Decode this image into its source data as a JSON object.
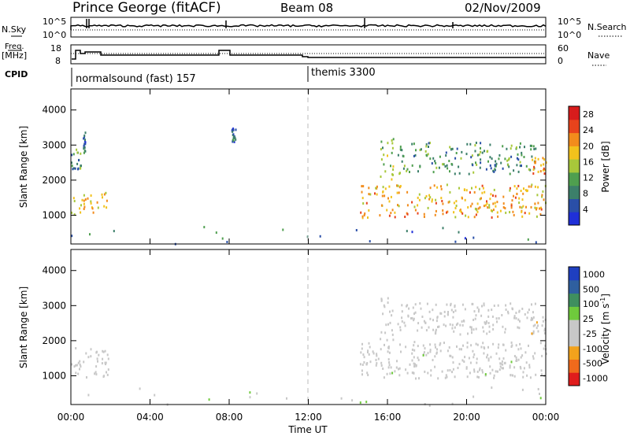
{
  "header": {
    "station": "Prince George (fitACF)",
    "beam": "Beam 08",
    "date": "02/Nov/2009"
  },
  "strips": {
    "nsky": {
      "label": "N.Sky",
      "ticks": [
        "10^5",
        "10^0"
      ]
    },
    "nsearch": {
      "label": "N.Search",
      "ticks": [
        "10^5",
        "10^0"
      ]
    },
    "freq": {
      "label_line1": "Freq.",
      "label_line2": "[MHz]",
      "ticks": [
        "18",
        "8"
      ]
    },
    "nave": {
      "label": "Nave",
      "ticks": [
        "60",
        "0"
      ]
    },
    "cpid": {
      "label": "CPID",
      "programs": [
        {
          "name": "normalsound (fast) 157",
          "start_hour": 0
        },
        {
          "name": "themis 3300",
          "start_hour": 12
        }
      ]
    }
  },
  "colors": {
    "power_scale": [
      "#1f2fd8",
      "#2a4fa8",
      "#3c7f6a",
      "#4f9f4f",
      "#a8c83a",
      "#f2c21c",
      "#f28c1c",
      "#e8431c",
      "#d81c1c"
    ],
    "velocity_scale": [
      "#e01c1c",
      "#f06a1c",
      "#f2a21c",
      "#c8c8c8",
      "#c8c8c8",
      "#6fca3c",
      "#3f8f5f",
      "#2f5f9f",
      "#1f3fc0"
    ]
  },
  "chart_data": [
    {
      "type": "heatmap",
      "title": "",
      "xlabel": "",
      "ylabel": "Slant Range [km]",
      "xlim": [
        0,
        24
      ],
      "ylim": [
        180,
        4600
      ],
      "x_tick_labels": [
        "00:00",
        "04:00",
        "08:00",
        "12:00",
        "16:00",
        "20:00",
        "00:00"
      ],
      "y_ticks": [
        1000,
        2000,
        3000,
        4000
      ],
      "colorbar": {
        "label": "Power [dB]",
        "ticks": [
          "4",
          "8",
          "12",
          "16",
          "20",
          "24",
          "28"
        ],
        "range": [
          0,
          30
        ]
      },
      "regions": [
        {
          "x": [
            0.0,
            1.9
          ],
          "y": [
            1050,
            1700
          ],
          "value": 18
        },
        {
          "x": [
            0.0,
            0.5
          ],
          "y": [
            2300,
            2900
          ],
          "value": 10
        },
        {
          "x": [
            0.6,
            0.7
          ],
          "y": [
            2800,
            3400
          ],
          "value": 6
        },
        {
          "x": [
            8.1,
            8.3
          ],
          "y": [
            3100,
            3500
          ],
          "value": 6
        },
        {
          "x": [
            14.6,
            24.0
          ],
          "y": [
            950,
            1900
          ],
          "value": 20
        },
        {
          "x": [
            15.6,
            16.3
          ],
          "y": [
            2000,
            3250
          ],
          "value": 14
        },
        {
          "x": [
            16.5,
            23.5
          ],
          "y": [
            2200,
            3100
          ],
          "value": 10
        },
        {
          "x": [
            23.2,
            24.0
          ],
          "y": [
            2200,
            2700
          ],
          "value": 22
        },
        {
          "x": [
            0.0,
            24.0
          ],
          "y": [
            180,
            700
          ],
          "value": 7
        }
      ]
    },
    {
      "type": "heatmap",
      "title": "",
      "xlabel": "Time UT",
      "ylabel": "Slant Range [km]",
      "xlim": [
        0,
        24
      ],
      "ylim": [
        180,
        4600
      ],
      "x_tick_labels": [
        "00:00",
        "04:00",
        "08:00",
        "12:00",
        "16:00",
        "20:00",
        "00:00"
      ],
      "y_ticks": [
        1000,
        2000,
        3000,
        4000
      ],
      "colorbar": {
        "label": "Velocity [m s^-1]",
        "ticks": [
          "1000",
          "500",
          "100",
          "25",
          "-25",
          "-100",
          "-500",
          "-1000"
        ],
        "range": [
          -1000,
          1000
        ]
      },
      "regions": [
        {
          "x": [
            0.0,
            1.9
          ],
          "y": [
            950,
            1850
          ],
          "value": -80
        },
        {
          "x": [
            14.6,
            24.0
          ],
          "y": [
            950,
            2000
          ],
          "value": 0
        },
        {
          "x": [
            15.6,
            16.3
          ],
          "y": [
            2000,
            3250
          ],
          "value": -200
        },
        {
          "x": [
            16.5,
            23.5
          ],
          "y": [
            2200,
            3100
          ],
          "value": -150
        },
        {
          "x": [
            23.2,
            24.0
          ],
          "y": [
            2200,
            2700
          ],
          "value": -200
        },
        {
          "x": [
            0.0,
            24.0
          ],
          "y": [
            180,
            700
          ],
          "value": 60
        }
      ]
    }
  ]
}
